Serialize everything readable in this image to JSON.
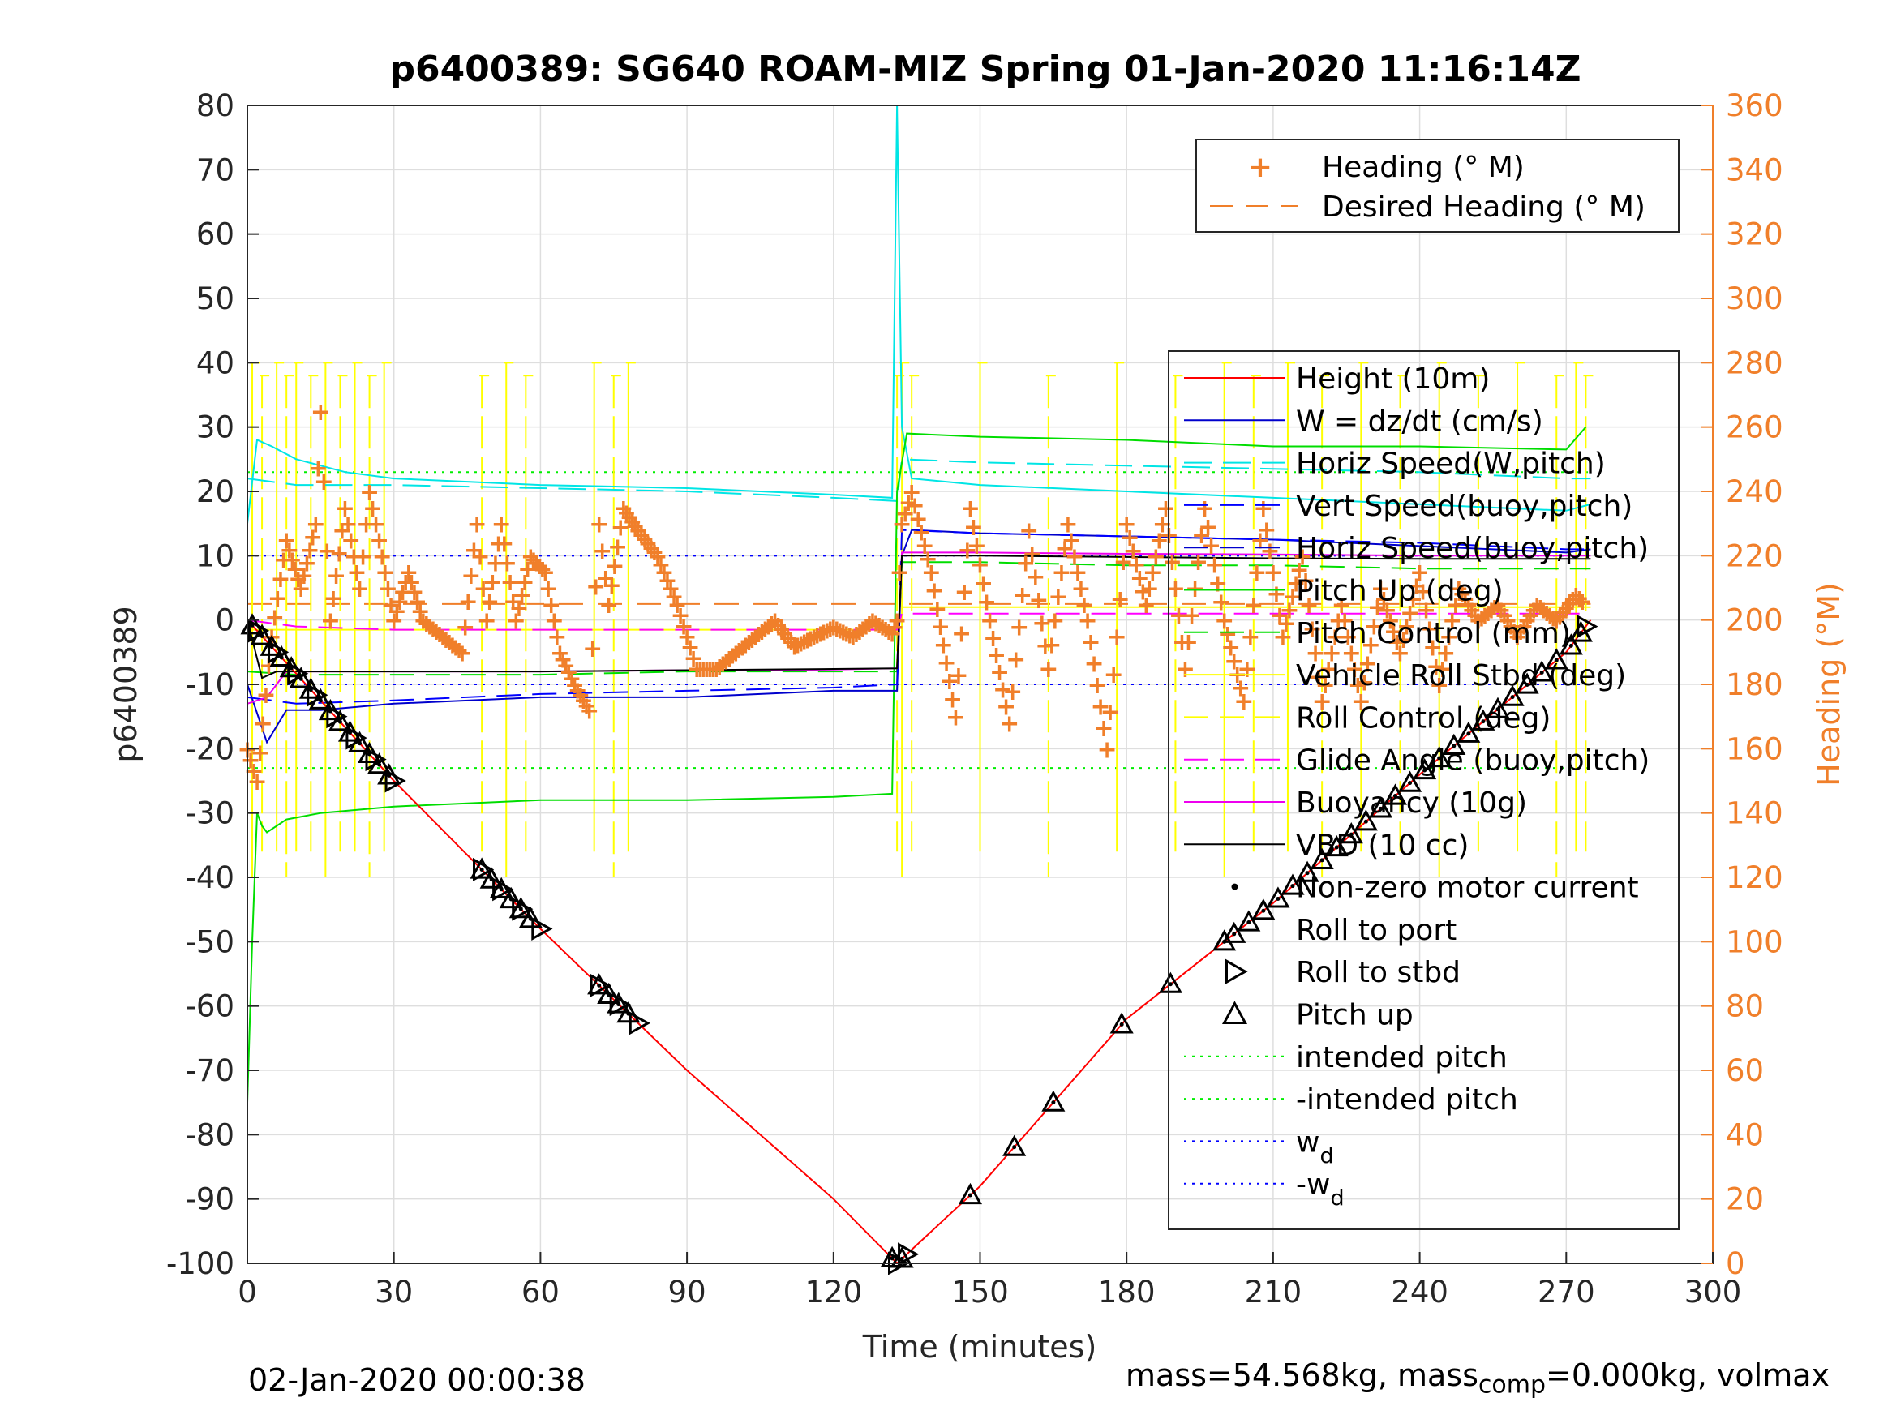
{
  "chart_data": {
    "type": "line",
    "title": "p6400389: SG640 ROAM-MIZ Spring 01-Jan-2020 11:16:14Z",
    "xlabel": "Time (minutes)",
    "ylabel": "p6400389",
    "y2label": "Heading (°M)",
    "xlim": [
      0,
      300
    ],
    "ylim": [
      -100,
      80
    ],
    "y2lim": [
      0,
      360
    ],
    "xticks": [
      0,
      30,
      60,
      90,
      120,
      150,
      180,
      210,
      240,
      270,
      300
    ],
    "yticks": [
      -100,
      -90,
      -80,
      -70,
      -60,
      -50,
      -40,
      -30,
      -20,
      -10,
      0,
      10,
      20,
      30,
      40,
      50,
      60,
      70,
      80
    ],
    "y2ticks": [
      0,
      20,
      40,
      60,
      80,
      100,
      120,
      140,
      160,
      180,
      200,
      220,
      240,
      260,
      280,
      300,
      320,
      340,
      360
    ],
    "grid": true,
    "colors": {
      "height": "#ff0000",
      "w": "#0000cc",
      "horiz_speed": "#00e5e5",
      "vert_speed": "#0000ff",
      "pitch": "#00dd00",
      "roll": "#ffff00",
      "glide": "#ff00ff",
      "buoyancy": "#ee00ee",
      "vbd": "#000000",
      "heading": "#f07f2a",
      "right_axis": "#f07f2a"
    },
    "legend_heading": {
      "placement": "top-right",
      "entries": [
        "Heading (° M)",
        "Desired Heading (° M)"
      ]
    },
    "legend_main": {
      "placement": "right",
      "entries": [
        {
          "label": "Height (10m)"
        },
        {
          "label": "W = dz/dt (cm/s)"
        },
        {
          "label": "Horiz Speed(W,pitch)"
        },
        {
          "label": "Vert Speed(buoy,pitch)"
        },
        {
          "label": "Horiz Speed(buoy,pitch)"
        },
        {
          "label": "Pitch Up (deg)"
        },
        {
          "label": "Pitch Control (mm)"
        },
        {
          "label": "Vehicle Roll Stbd (deg)"
        },
        {
          "label": "Roll Control (deg)"
        },
        {
          "label": "Glide Angle (buoy,pitch)"
        },
        {
          "label": "Buoyancy (10g)"
        },
        {
          "label": "VBD (10 cc)"
        },
        {
          "label": "Non-zero motor current"
        },
        {
          "label": "Roll to port"
        },
        {
          "label": "Roll to stbd"
        },
        {
          "label": "Pitch up"
        },
        {
          "label": "intended pitch"
        },
        {
          "label": "-intended pitch"
        },
        {
          "label": "w",
          "sub": "d"
        },
        {
          "label": "-w",
          "sub": "d"
        }
      ]
    },
    "series": {
      "height": {
        "x": [
          0,
          30,
          60,
          90,
          120,
          133,
          150,
          180,
          210,
          240,
          270,
          275
        ],
        "y": [
          0,
          -25,
          -48,
          -70,
          -90,
          -100,
          -88,
          -62,
          -44,
          -24,
          -5,
          0
        ]
      },
      "w": {
        "x": [
          0,
          4,
          8,
          15,
          30,
          60,
          90,
          120,
          133,
          134,
          136,
          150,
          180,
          210,
          240,
          270,
          275
        ],
        "y": [
          -10,
          -19,
          -14,
          -14,
          -13,
          -12,
          -12,
          -11,
          -11,
          10,
          14,
          13.5,
          13,
          12.5,
          11.5,
          10.5,
          11
        ]
      },
      "horiz_speed": {
        "x": [
          0,
          2,
          5,
          10,
          20,
          30,
          60,
          90,
          120,
          132,
          133,
          134,
          136,
          150,
          180,
          210,
          240,
          270,
          275
        ],
        "y": [
          15,
          28,
          27,
          25,
          23,
          22,
          21,
          20.5,
          19.5,
          19,
          80,
          30,
          22,
          21,
          20,
          19,
          18,
          17,
          18
        ]
      },
      "vert_speed": {
        "x": [
          0,
          10,
          30,
          60,
          90,
          120,
          133,
          134,
          150,
          180,
          210,
          240,
          270,
          275
        ],
        "y": [
          -12,
          -13,
          -12.5,
          -11.5,
          -11,
          -10.5,
          -10,
          14,
          13.5,
          13,
          12.5,
          12,
          11,
          11
        ]
      },
      "horiz_speed_buoy": {
        "x": [
          0,
          10,
          30,
          60,
          90,
          120,
          133,
          134,
          150,
          180,
          210,
          240,
          270,
          275
        ],
        "y": [
          22,
          21,
          21,
          20.5,
          20,
          19,
          18.5,
          25,
          24.5,
          24,
          23.5,
          23,
          22,
          22
        ]
      },
      "pitch_up": {
        "x": [
          0,
          1,
          2,
          3,
          4,
          8,
          15,
          30,
          60,
          90,
          120,
          132,
          133,
          135,
          150,
          180,
          210,
          240,
          270,
          274
        ],
        "y": [
          -75,
          -50,
          -30,
          -32,
          -33,
          -31,
          -30,
          -29,
          -28,
          -28,
          -27.5,
          -27,
          20,
          29,
          28.5,
          28,
          27,
          27,
          26.5,
          30
        ]
      },
      "pitch_control": {
        "x": [
          0,
          10,
          30,
          60,
          90,
          120,
          133,
          134,
          150,
          180,
          210,
          240,
          270,
          275
        ],
        "y": [
          -8,
          -8.5,
          -8.5,
          -8.5,
          -8,
          -8,
          -8,
          9,
          9,
          8.5,
          8.5,
          8,
          8,
          8
        ]
      },
      "glide_angle": {
        "x": [
          0,
          10,
          30,
          60,
          90,
          120,
          133,
          134,
          150,
          180,
          210,
          240,
          270,
          275
        ],
        "y": [
          0,
          -1,
          -1.5,
          -1.5,
          -1.5,
          -1.5,
          -1.5,
          1,
          1,
          1,
          1,
          1,
          1,
          1
        ]
      },
      "buoyancy": {
        "x": [
          0,
          4,
          8,
          30,
          60,
          90,
          120,
          133,
          134,
          150,
          180,
          210,
          240,
          270,
          275
        ],
        "y": [
          -13,
          -12,
          -8,
          -8,
          -8,
          -7.8,
          -7.7,
          -7.5,
          10.5,
          10.5,
          10.3,
          10.2,
          10,
          10,
          10
        ]
      },
      "vbd": {
        "x": [
          0,
          3,
          6,
          30,
          60,
          90,
          120,
          133,
          134,
          150,
          180,
          210,
          240,
          270,
          275
        ],
        "y": [
          0,
          -9,
          -8,
          -8,
          -8,
          -7.8,
          -7.6,
          -7.5,
          10,
          10,
          9.8,
          9.6,
          9.5,
          9.5,
          9.5
        ]
      },
      "roll_spikes_x": [
        1,
        3,
        6,
        8,
        10,
        13,
        16,
        19,
        22,
        25,
        28,
        48,
        53,
        57,
        71,
        75,
        78,
        133,
        134,
        136,
        150,
        164,
        178,
        190,
        200,
        206,
        213,
        220,
        228,
        236,
        244,
        252,
        260,
        268,
        272,
        274
      ],
      "heading_x": [
        0,
        2,
        5,
        8,
        11,
        14,
        15,
        17,
        20,
        23,
        25,
        27,
        30,
        33,
        36,
        40,
        44,
        47,
        49,
        52,
        55,
        58,
        61,
        64,
        67,
        70,
        72,
        74,
        77,
        80,
        84,
        88,
        92,
        96,
        100,
        104,
        108,
        112,
        116,
        120,
        124,
        128,
        132,
        133,
        134,
        136,
        140,
        145,
        148,
        152,
        156,
        160,
        164,
        168,
        172,
        176,
        180,
        184,
        188,
        192,
        196,
        200,
        204,
        208,
        212,
        216,
        220,
        224,
        228,
        232,
        236,
        240,
        244,
        248,
        252,
        256,
        260,
        264,
        268,
        272,
        274
      ],
      "heading_y": [
        160,
        150,
        195,
        225,
        210,
        230,
        265,
        200,
        235,
        210,
        240,
        225,
        200,
        215,
        200,
        195,
        190,
        230,
        200,
        230,
        200,
        220,
        215,
        190,
        180,
        172,
        230,
        205,
        235,
        228,
        220,
        205,
        185,
        185,
        190,
        195,
        200,
        192,
        195,
        198,
        195,
        200,
        196,
        200,
        230,
        240,
        215,
        170,
        235,
        200,
        168,
        228,
        185,
        230,
        200,
        160,
        230,
        205,
        235,
        185,
        235,
        200,
        175,
        235,
        195,
        220,
        175,
        205,
        175,
        210,
        190,
        215,
        180,
        210,
        200,
        205,
        195,
        205,
        200,
        208,
        205
      ],
      "desired_heading": 205,
      "intended_pitch": 23,
      "wd": 10,
      "pitch_markers_x": [
        1,
        3,
        5,
        7,
        9,
        11,
        13,
        15,
        17,
        19,
        21,
        23,
        25,
        27,
        29,
        48,
        50,
        52,
        54,
        56,
        58,
        72,
        74,
        76,
        78,
        132,
        134,
        148,
        157,
        165,
        179,
        189,
        200,
        202,
        205,
        208,
        211,
        214,
        217,
        220,
        223,
        226,
        229,
        232,
        235,
        238,
        241,
        244,
        247,
        250,
        253,
        256,
        259,
        262,
        265,
        268,
        271,
        273
      ],
      "roll_stbd_x": [
        2,
        6,
        10,
        14,
        18,
        22,
        26,
        30,
        48,
        52,
        56,
        60,
        72,
        76,
        80,
        133,
        135,
        274
      ]
    }
  },
  "footer": {
    "left": "02-Jan-2020 00:00:38",
    "right_prefix": "mass=54.568kg, mass",
    "right_sub": "comp",
    "right_suffix": "=0.000kg, volmax"
  }
}
